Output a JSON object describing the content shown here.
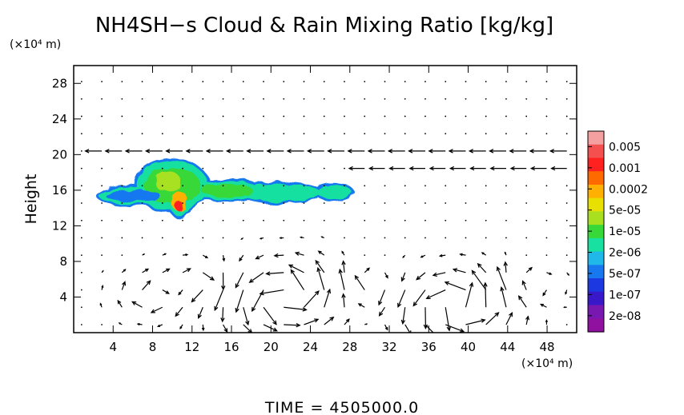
{
  "chart_data": {
    "type": "heatmap",
    "title": "NH4SH−s Cloud & Rain Mixing Ratio [kg/kg]",
    "ylabel": "Height",
    "x_unit": "(×10⁴ m)",
    "y_unit": "(×10⁴ m)",
    "xlim": [
      0,
      51
    ],
    "ylim": [
      0,
      30
    ],
    "x_ticks": [
      "4",
      "8",
      "12",
      "16",
      "20",
      "24",
      "28",
      "32",
      "36",
      "40",
      "44",
      "48"
    ],
    "x_tick_values": [
      4,
      8,
      12,
      16,
      20,
      24,
      28,
      32,
      36,
      40,
      44,
      48
    ],
    "y_ticks": [
      "4",
      "8",
      "12",
      "16",
      "20",
      "24",
      "28"
    ],
    "y_tick_values": [
      4,
      8,
      12,
      16,
      20,
      24,
      28
    ],
    "footer": "TIME  =  4505000.0",
    "colorbar": {
      "labels": [
        "0.005",
        "0.001",
        "0.0002",
        "5e-05",
        "1e-05",
        "2e-06",
        "5e-07",
        "1e-07",
        "2e-08"
      ],
      "colors": [
        "#f5a0a0",
        "#f55050",
        "#ff2020",
        "#ff6a00",
        "#ffb000",
        "#e8e000",
        "#a8e020",
        "#38d838",
        "#18e0a0",
        "#20b8e8",
        "#1878f0",
        "#1c38e0",
        "#3818c8",
        "#7818b0",
        "#9010a0"
      ]
    },
    "cloud_regions": [
      {
        "x_center": 10.0,
        "y_center": 16.5,
        "x_radius": 3.5,
        "y_radius": 2.7,
        "level": "1e-05"
      },
      {
        "x_center": 6.0,
        "y_center": 15.4,
        "x_radius": 3.4,
        "y_radius": 0.9,
        "level": "5e-07"
      },
      {
        "x_center": 15.5,
        "y_center": 16.0,
        "x_radius": 3.2,
        "y_radius": 1.0,
        "level": "1e-05"
      },
      {
        "x_center": 21.0,
        "y_center": 15.7,
        "x_radius": 4.0,
        "y_radius": 0.9,
        "level": "2e-06"
      },
      {
        "x_center": 26.4,
        "y_center": 15.8,
        "x_radius": 1.7,
        "y_radius": 0.7,
        "level": "2e-06"
      },
      {
        "x_center": 9.5,
        "y_center": 17.0,
        "x_radius": 1.6,
        "y_radius": 1.6,
        "level": "5e-05"
      },
      {
        "x_center": 10.7,
        "y_center": 14.8,
        "x_radius": 0.9,
        "y_radius": 1.6,
        "level": "0.0002"
      },
      {
        "x_center": 10.7,
        "y_center": 14.2,
        "x_radius": 0.4,
        "y_radius": 0.8,
        "level": "0.001"
      }
    ],
    "wind_field": {
      "jets": [
        {
          "y": 20.0,
          "x_from": 2,
          "x_to": 51,
          "direction": "westward"
        },
        {
          "y": 18.0,
          "x_from": 28,
          "x_to": 50,
          "direction": "westward"
        }
      ],
      "vortices": [
        {
          "x": 21.5,
          "y": 4.0,
          "rotation": "counterclockwise"
        },
        {
          "x": 39.0,
          "y": 3.0,
          "rotation": "counterclockwise"
        }
      ]
    }
  }
}
